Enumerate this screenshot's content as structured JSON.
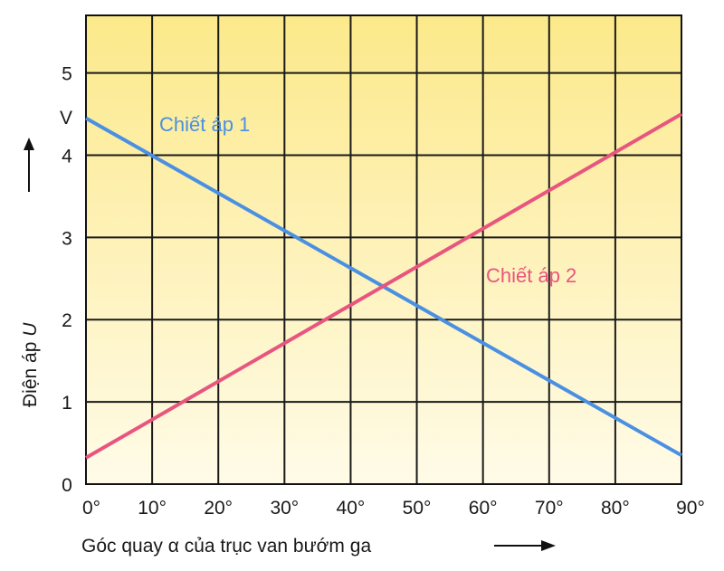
{
  "chart_data": {
    "type": "line",
    "x": [
      0,
      90
    ],
    "series": [
      {
        "name": "Chiết áp 1",
        "values": [
          4.45,
          0.35
        ],
        "color": "#4a90e2"
      },
      {
        "name": "Chiết áp 2",
        "values": [
          0.32,
          4.5
        ],
        "color": "#e8557f"
      }
    ],
    "x_ticks": [
      "0°",
      "10°",
      "20°",
      "30°",
      "40°",
      "50°",
      "60°",
      "70°",
      "80°",
      "90°"
    ],
    "y_ticks": [
      "0",
      "1",
      "2",
      "3",
      "4",
      "5"
    ],
    "y_unit": "V",
    "xlabel": "Góc quay α của trục van bướm ga",
    "ylabel_prefix": "Điện áp",
    "ylabel_symbol": "U",
    "xlim": [
      0,
      90
    ],
    "ylim": [
      0,
      5.7
    ],
    "grid": true,
    "background_top": "#fce98a",
    "background_bottom": "#fffbe8"
  }
}
